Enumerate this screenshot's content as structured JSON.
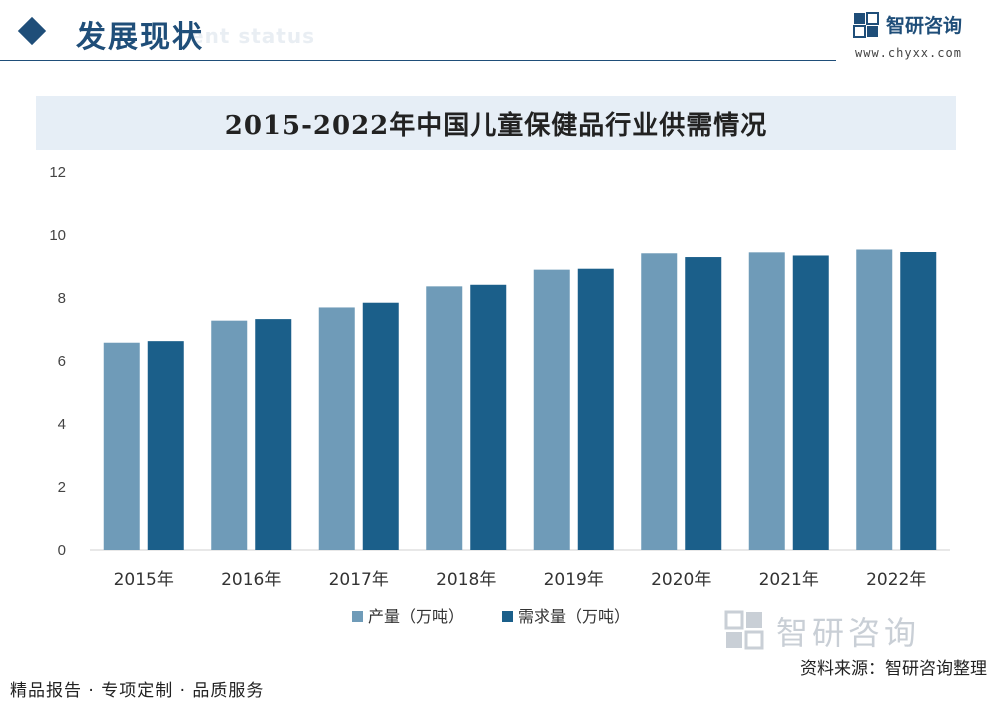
{
  "header": {
    "section_title": "发展现状",
    "section_subtitle": "ent status",
    "brand_name": "智研咨询",
    "brand_url": "www.chyxx.com"
  },
  "colors": {
    "primary": "#1f4e79",
    "series_production": "#6f9bb8",
    "series_demand": "#1b5f8a",
    "title_band": "#e6eef6"
  },
  "chart_data": {
    "type": "bar",
    "title": "2015-2022年中国儿童保健品行业供需情况",
    "categories": [
      "2015年",
      "2016年",
      "2017年",
      "2018年",
      "2019年",
      "2020年",
      "2021年",
      "2022年"
    ],
    "series": [
      {
        "name": "产量（万吨）",
        "values": [
          6.58,
          7.28,
          7.7,
          8.37,
          8.9,
          9.42,
          9.45,
          9.54
        ]
      },
      {
        "name": "需求量（万吨）",
        "values": [
          6.63,
          7.33,
          7.85,
          8.42,
          8.93,
          9.3,
          9.35,
          9.46
        ]
      }
    ],
    "ylim": [
      0,
      12
    ],
    "yticks": [
      "0",
      "2",
      "4",
      "6",
      "8",
      "10",
      "12"
    ],
    "xlabel": "",
    "ylabel": "",
    "legend": "bottom-center"
  },
  "footer": {
    "services": "精品报告 · 专项定制 · 品质服务",
    "source": "资料来源：智研咨询整理",
    "watermark_brand": "智研咨询"
  }
}
